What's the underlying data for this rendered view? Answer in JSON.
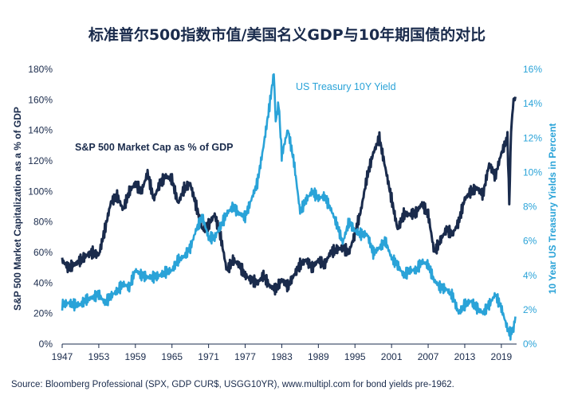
{
  "chart_data": {
    "type": "line",
    "title": "标准普尔500指数市值/美国名义GDP与10年期国债的对比",
    "source": "Source: Bloomberg Professional (SPX, GDP CUR$, USGG10YR), www.multipl.com for bond yields pre-1962.",
    "xlabel": "",
    "x_ticks": [
      "1947",
      "1953",
      "1959",
      "1965",
      "1971",
      "1977",
      "1983",
      "1989",
      "1995",
      "2001",
      "2007",
      "2013",
      "2019"
    ],
    "xlim": [
      1947,
      2021.5
    ],
    "y_left": {
      "label": "S&P 500 Market Capitalization as a % of GDP",
      "ticks": [
        "0%",
        "20%",
        "40%",
        "60%",
        "80%",
        "100%",
        "120%",
        "140%",
        "160%",
        "180%"
      ],
      "lim": [
        0,
        180
      ]
    },
    "y_right": {
      "label": "10 Year US Treasury Yields in Percent",
      "ticks": [
        "0%",
        "2%",
        "4%",
        "6%",
        "8%",
        "10%",
        "12%",
        "14%",
        "16%"
      ],
      "lim": [
        0,
        16
      ]
    },
    "series": [
      {
        "name": "S&P 500 Market Cap as % of GDP",
        "axis": "left",
        "color": "#1a2b4c",
        "x": [
          1947,
          1948,
          1949,
          1950,
          1951,
          1952,
          1953,
          1954,
          1955,
          1956,
          1957,
          1958,
          1959,
          1960,
          1961,
          1962,
          1963,
          1964,
          1965,
          1966,
          1967,
          1968,
          1969,
          1970,
          1971,
          1972,
          1973,
          1974,
          1975,
          1976,
          1977,
          1978,
          1979,
          1980,
          1981,
          1982,
          1983,
          1984,
          1985,
          1986,
          1987,
          1988,
          1989,
          1990,
          1991,
          1992,
          1993,
          1994,
          1995,
          1996,
          1997,
          1998,
          1999,
          2000,
          2001,
          2002,
          2003,
          2004,
          2005,
          2006,
          2007,
          2008,
          2009,
          2010,
          2011,
          2012,
          2013,
          2014,
          2015,
          2016,
          2017,
          2018,
          2019,
          2020,
          2020.3,
          2020.6,
          2021,
          2021.3
        ],
        "values": [
          55,
          50,
          52,
          55,
          58,
          60,
          58,
          75,
          93,
          97,
          88,
          100,
          105,
          100,
          112,
          95,
          105,
          110,
          108,
          92,
          102,
          105,
          90,
          75,
          78,
          85,
          70,
          48,
          55,
          52,
          45,
          42,
          40,
          45,
          38,
          36,
          42,
          38,
          45,
          52,
          55,
          50,
          55,
          52,
          60,
          62,
          63,
          60,
          72,
          88,
          110,
          125,
          135,
          115,
          95,
          75,
          85,
          85,
          86,
          92,
          85,
          60,
          68,
          75,
          72,
          80,
          95,
          100,
          102,
          98,
          118,
          110,
          125,
          135,
          92,
          140,
          160,
          162
        ]
      },
      {
        "name": "US Treasury 10Y Yield",
        "axis": "right",
        "color": "#2aa3d8",
        "x": [
          1947,
          1948,
          1949,
          1950,
          1951,
          1952,
          1953,
          1954,
          1955,
          1956,
          1957,
          1958,
          1959,
          1960,
          1961,
          1962,
          1963,
          1964,
          1965,
          1966,
          1967,
          1968,
          1969,
          1970,
          1971,
          1972,
          1973,
          1974,
          1975,
          1976,
          1977,
          1978,
          1979,
          1980,
          1981,
          1981.7,
          1982,
          1982.5,
          1983,
          1984,
          1985,
          1986,
          1987,
          1988,
          1989,
          1990,
          1991,
          1992,
          1993,
          1994,
          1995,
          1996,
          1997,
          1998,
          1999,
          2000,
          2001,
          2002,
          2003,
          2004,
          2005,
          2006,
          2007,
          2008,
          2009,
          2010,
          2011,
          2012,
          2013,
          2014,
          2015,
          2016,
          2017,
          2018,
          2019,
          2020,
          2020.5,
          2021,
          2021.3
        ],
        "values": [
          2.3,
          2.4,
          2.3,
          2.3,
          2.6,
          2.7,
          2.9,
          2.4,
          2.8,
          3.1,
          3.5,
          3.3,
          4.3,
          4.0,
          3.9,
          3.9,
          4.0,
          4.2,
          4.3,
          4.9,
          5.1,
          5.6,
          6.7,
          7.4,
          6.2,
          6.2,
          6.9,
          7.6,
          8.0,
          7.6,
          7.4,
          8.4,
          9.4,
          11.5,
          13.9,
          15.8,
          13.0,
          14.0,
          11.0,
          12.5,
          10.6,
          7.7,
          8.4,
          8.9,
          8.5,
          8.6,
          7.9,
          7.0,
          5.9,
          7.1,
          6.6,
          6.4,
          6.4,
          5.3,
          5.6,
          6.0,
          5.0,
          4.6,
          4.0,
          4.3,
          4.3,
          4.8,
          4.6,
          3.7,
          3.3,
          3.2,
          2.8,
          1.8,
          2.3,
          2.5,
          2.1,
          1.8,
          2.3,
          2.9,
          2.1,
          0.9,
          0.6,
          0.9,
          1.6
        ]
      }
    ],
    "annotations": [
      {
        "text": "S&P 500 Market Cap as % of GDP",
        "series": 0
      },
      {
        "text": "US Treasury 10Y Yield",
        "series": 1
      }
    ],
    "grid": false,
    "legend": "inline labels"
  }
}
